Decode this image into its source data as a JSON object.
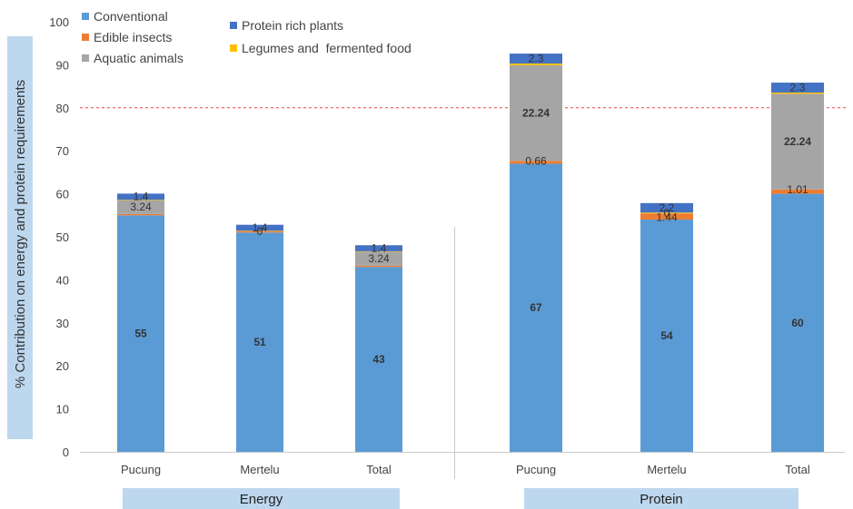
{
  "chart_data": {
    "type": "bar",
    "stacked": true,
    "ylabel": "% Contribution on energy and protein requirements",
    "ylim": [
      0,
      100
    ],
    "y_ticks": [
      "0",
      "10",
      "20",
      "30",
      "40",
      "50",
      "60",
      "70",
      "80",
      "90",
      "100"
    ],
    "reference_line": {
      "value": 80,
      "style": "dashed",
      "color": "#e8463c"
    },
    "legend": [
      {
        "label": "Conventional",
        "color": "#5b9bd5"
      },
      {
        "label": "Edible insects",
        "color": "#ed7d31"
      },
      {
        "label": "Aquatic animals",
        "color": "#a5a5a5"
      },
      {
        "label": "Protein rich plants",
        "color": "#4472c4"
      },
      {
        "label": "Legumes and  fermented food",
        "color": "#ffc000"
      }
    ],
    "groups": [
      {
        "label": "Energy",
        "categories": [
          "Pucung",
          "Mertelu",
          "Total"
        ],
        "series": [
          {
            "name": "Conventional",
            "values": [
              55,
              51,
              43
            ],
            "labels": [
              "55",
              "51",
              "43"
            ]
          },
          {
            "name": "Edible insects",
            "values": [
              0.3,
              0.3,
              0.3
            ],
            "labels": [
              "",
              "",
              ""
            ]
          },
          {
            "name": "Aquatic animals",
            "values": [
              3.24,
              0,
              3.24
            ],
            "labels": [
              "3.24",
              "0",
              "3.24"
            ]
          },
          {
            "name": "Legumes and  fermented food",
            "values": [
              0.1,
              0.1,
              0.1
            ],
            "labels": [
              "",
              "",
              ""
            ]
          },
          {
            "name": "Protein rich plants",
            "values": [
              1.4,
              1.4,
              1.4
            ],
            "labels": [
              "1.4",
              "1.4",
              "1.4"
            ]
          }
        ]
      },
      {
        "label": "Protein",
        "categories": [
          "Pucung",
          "Mertelu",
          "Total"
        ],
        "series": [
          {
            "name": "Conventional",
            "values": [
              67,
              54,
              60
            ],
            "labels": [
              "67",
              "54",
              "60"
            ]
          },
          {
            "name": "Edible insects",
            "values": [
              0.66,
              1.44,
              1.01
            ],
            "labels": [
              "0.66",
              "1.44",
              "1.01"
            ]
          },
          {
            "name": "Aquatic animals",
            "values": [
              22.24,
              0,
              22.24
            ],
            "labels": [
              "22.24",
              "0",
              "22.24"
            ]
          },
          {
            "name": "Legumes and  fermented food",
            "values": [
              0.4,
              0.2,
              0.3
            ],
            "labels": [
              "",
              "",
              ""
            ]
          },
          {
            "name": "Protein rich plants",
            "values": [
              2.3,
              2.2,
              2.3
            ],
            "labels": [
              "2.3",
              "2.2",
              "2.3"
            ]
          }
        ]
      }
    ]
  }
}
